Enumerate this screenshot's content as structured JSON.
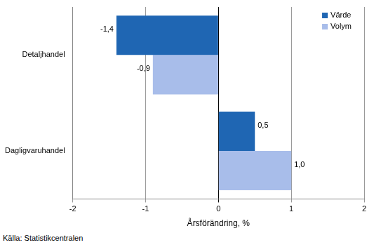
{
  "chart_data": {
    "type": "bar",
    "orientation": "horizontal",
    "categories": [
      "Detaljhandel",
      "Dagligvaruhandel"
    ],
    "series": [
      {
        "name": "Värde",
        "color": "#1f66b3",
        "values": [
          -1.4,
          0.5
        ],
        "value_labels": [
          "-1,4",
          "0,5"
        ]
      },
      {
        "name": "Volym",
        "color": "#a8bdea",
        "values": [
          -0.9,
          1.0
        ],
        "value_labels": [
          "-0,9",
          "1,0"
        ]
      }
    ],
    "x_label": "Årsförändring, %",
    "source": "Källa: Statistikcentralen",
    "xlim": [
      -2,
      2
    ],
    "xticks": [
      -2,
      -1,
      0,
      1,
      2
    ],
    "grid": true,
    "legend": "top-right",
    "data_labels": true
  }
}
